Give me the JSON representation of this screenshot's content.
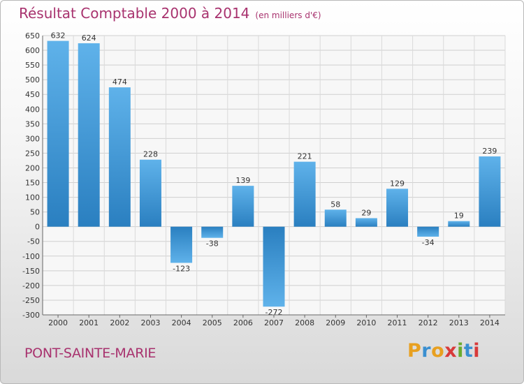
{
  "title": "Résultat Comptable 2000 à 2014",
  "subtitle": "(en milliers d'€)",
  "commune": "PONT-SAINTE-MARIE",
  "logo": "Proxiti",
  "colors": {
    "title": "#a8326e",
    "bar_top": "#5fb2ea",
    "bar_bottom": "#2a7fc0"
  },
  "chart_data": {
    "type": "bar",
    "title": "Résultat Comptable 2000 à 2014",
    "subtitle": "(en milliers d'€)",
    "xlabel": "",
    "ylabel": "",
    "ylim": [
      -300,
      650
    ],
    "ytick_step": 50,
    "grid": true,
    "categories": [
      "2000",
      "2001",
      "2002",
      "2003",
      "2004",
      "2005",
      "2006",
      "2007",
      "2008",
      "2009",
      "2010",
      "2011",
      "2012",
      "2013",
      "2014"
    ],
    "values": [
      632,
      624,
      474,
      228,
      -123,
      -38,
      139,
      -272,
      221,
      58,
      29,
      129,
      -34,
      19,
      239
    ]
  }
}
